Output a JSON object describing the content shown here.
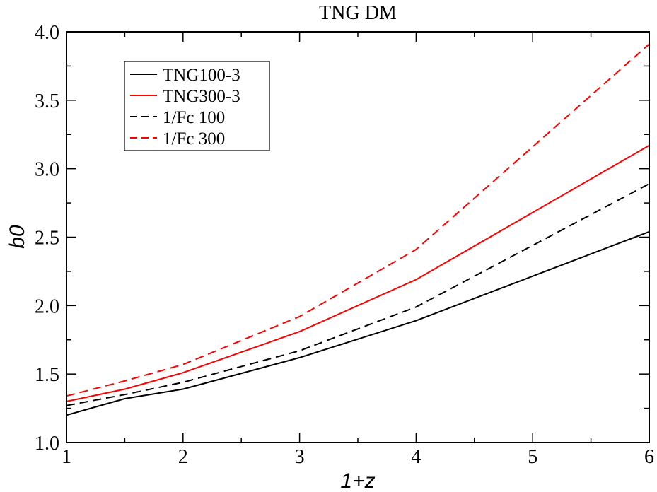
{
  "chart_data": {
    "type": "line",
    "title": "TNG DM",
    "xlabel": "1+z",
    "ylabel": "b0",
    "xlim": [
      1,
      6
    ],
    "ylim": [
      1.0,
      4.0
    ],
    "xticks": [
      1,
      2,
      3,
      4,
      5,
      6
    ],
    "xtick_labels": [
      "1",
      "2",
      "3",
      "4",
      "5",
      "6"
    ],
    "yticks": [
      1.0,
      1.5,
      2.0,
      2.5,
      3.0,
      3.5,
      4.0
    ],
    "ytick_labels": [
      "1.0",
      "1.5",
      "2.0",
      "2.5",
      "3.0",
      "3.5",
      "4.0"
    ],
    "grid": false,
    "legend_position": "top-left",
    "series": [
      {
        "name": "TNG100-3",
        "color": "#000000",
        "dash": "solid",
        "x": [
          1,
          1.5,
          2,
          3,
          4,
          6
        ],
        "y": [
          1.2,
          1.32,
          1.39,
          1.62,
          1.89,
          2.54
        ]
      },
      {
        "name": "TNG300-3",
        "color": "#ff0000",
        "dash": "solid",
        "x": [
          1,
          1.5,
          2,
          3,
          4,
          6
        ],
        "y": [
          1.3,
          1.39,
          1.51,
          1.81,
          2.19,
          3.17
        ]
      },
      {
        "name": "1/Fc 100",
        "color": "#000000",
        "dash": "dashed",
        "x": [
          1,
          1.5,
          2,
          3,
          4,
          6
        ],
        "y": [
          1.27,
          1.35,
          1.44,
          1.67,
          1.99,
          2.89
        ]
      },
      {
        "name": "1/Fc 300",
        "color": "#ff0000",
        "dash": "dashed",
        "x": [
          1,
          1.5,
          2,
          3,
          4,
          6
        ],
        "y": [
          1.34,
          1.45,
          1.57,
          1.92,
          2.41,
          3.91
        ]
      }
    ]
  }
}
